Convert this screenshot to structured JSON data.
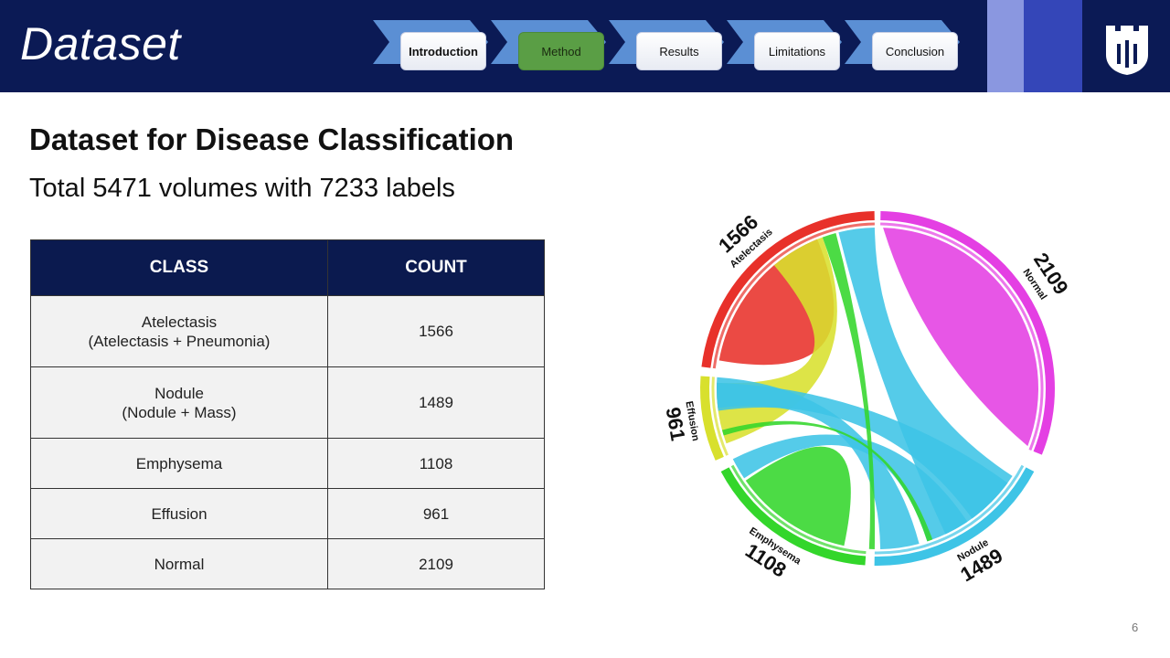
{
  "header": {
    "title": "Dataset",
    "nav": [
      {
        "label": "Introduction",
        "state": "visited"
      },
      {
        "label": "Method",
        "state": "active"
      },
      {
        "label": "Results",
        "state": "default"
      },
      {
        "label": "Limitations",
        "state": "default"
      },
      {
        "label": "Conclusion",
        "state": "default"
      }
    ],
    "logo_icon": "shield-logo-icon"
  },
  "main": {
    "heading": "Dataset for Disease Classification",
    "subheading": "Total 5471 volumes with 7233 labels",
    "table": {
      "headers": [
        "CLASS",
        "COUNT"
      ],
      "rows": [
        {
          "class_line1": "Atelectasis",
          "class_line2": "(Atelectasis + Pneumonia)",
          "count": "1566"
        },
        {
          "class_line1": "Nodule",
          "class_line2": "(Nodule + Mass)",
          "count": "1489"
        },
        {
          "class_line1": "Emphysema",
          "class_line2": "",
          "count": "1108"
        },
        {
          "class_line1": "Effusion",
          "class_line2": "",
          "count": "961"
        },
        {
          "class_line1": "Normal",
          "class_line2": "",
          "count": "2109"
        }
      ]
    }
  },
  "chart_data": {
    "type": "chord",
    "groups": [
      {
        "name": "Atelectasis",
        "total": "1566",
        "color": "#e8312a"
      },
      {
        "name": "Normal",
        "total": "2109",
        "color": "#e43fe3"
      },
      {
        "name": "Nodule",
        "total": "1489",
        "color": "#3ec4e6"
      },
      {
        "name": "Emphysema",
        "total": "1108",
        "color": "#33d62b"
      },
      {
        "name": "Effusion",
        "total": "961",
        "color": "#d8e02d"
      }
    ],
    "ribbons": [
      {
        "source": "Normal",
        "target": "Normal",
        "value": 2109
      },
      {
        "source": "Nodule",
        "target": "Atelectasis",
        "value": 200
      },
      {
        "source": "Emphysema",
        "target": "Atelectasis",
        "value": 40
      },
      {
        "source": "Effusion",
        "target": "Atelectasis",
        "value": 350
      },
      {
        "source": "Atelectasis",
        "target": "Atelectasis",
        "value": 500
      },
      {
        "source": "Effusion",
        "target": "Nodule",
        "value": 200
      },
      {
        "source": "Emphysema",
        "target": "Nodule",
        "value": 300
      },
      {
        "source": "Nodule",
        "target": "Nodule",
        "value": 500
      },
      {
        "source": "Emphysema",
        "target": "Emphysema",
        "value": 500
      },
      {
        "source": "Effusion",
        "target": "Emphysema",
        "value": 10
      }
    ]
  },
  "footer": {
    "page_number": "6"
  }
}
